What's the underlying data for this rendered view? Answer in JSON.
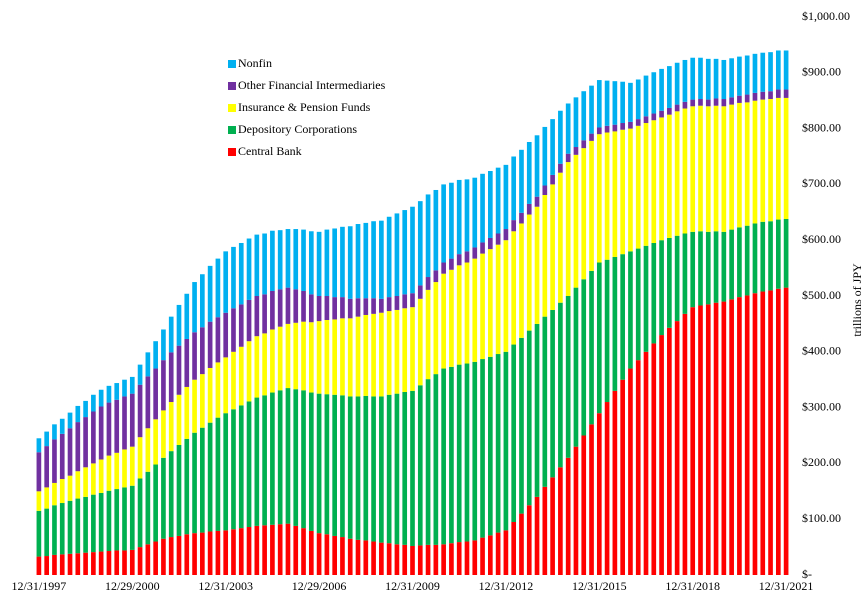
{
  "chart_data": {
    "type": "stacked_bar",
    "y_label": "trillions of JPY",
    "categories": [
      "12/31/1997",
      null,
      null,
      null,
      null,
      null,
      null,
      null,
      null,
      null,
      null,
      null,
      "12/29/2000",
      null,
      null,
      null,
      null,
      null,
      null,
      null,
      null,
      null,
      null,
      null,
      "12/31/2003",
      null,
      null,
      null,
      null,
      null,
      null,
      null,
      null,
      null,
      null,
      null,
      "12/29/2006",
      null,
      null,
      null,
      null,
      null,
      null,
      null,
      null,
      null,
      null,
      null,
      "12/31/2009",
      null,
      null,
      null,
      null,
      null,
      null,
      null,
      null,
      null,
      null,
      null,
      "12/31/2012",
      null,
      null,
      null,
      null,
      null,
      null,
      null,
      null,
      null,
      null,
      null,
      "12/31/2015",
      null,
      null,
      null,
      null,
      null,
      null,
      null,
      null,
      null,
      null,
      null,
      "12/31/2018",
      null,
      null,
      null,
      null,
      null,
      null,
      null,
      null,
      null,
      null,
      null,
      "12/31/2021"
    ],
    "series": [
      {
        "name": "Central Bank",
        "color": "#ff0000",
        "values": [
          33,
          34,
          36,
          37,
          38,
          39,
          40,
          41,
          42,
          43,
          44,
          44,
          45,
          50,
          55,
          60,
          65,
          68,
          70,
          73,
          75,
          76,
          78,
          79,
          80,
          82,
          84,
          86,
          88,
          89,
          90,
          91,
          92,
          88,
          84,
          79,
          75,
          73,
          70,
          68,
          65,
          63,
          62,
          60,
          58,
          57,
          55,
          54,
          52,
          53,
          54,
          54,
          55,
          57,
          59,
          60,
          62,
          67,
          71,
          76,
          80,
          95,
          110,
          125,
          140,
          158,
          175,
          193,
          210,
          230,
          250,
          270,
          290,
          310,
          330,
          350,
          370,
          385,
          400,
          415,
          430,
          443,
          455,
          468,
          480,
          483,
          485,
          488,
          490,
          494,
          498,
          501,
          505,
          508,
          510,
          513,
          515
        ]
      },
      {
        "name": "Depository Corporations",
        "color": "#00b050",
        "values": [
          82,
          85,
          89,
          92,
          95,
          98,
          100,
          103,
          105,
          108,
          110,
          113,
          115,
          123,
          130,
          138,
          145,
          154,
          163,
          171,
          180,
          188,
          195,
          203,
          210,
          215,
          220,
          225,
          230,
          233,
          237,
          240,
          243,
          245,
          247,
          248,
          250,
          251,
          253,
          254,
          255,
          257,
          259,
          260,
          262,
          266,
          270,
          274,
          278,
          287,
          297,
          306,
          315,
          316,
          318,
          319,
          320,
          320,
          320,
          320,
          320,
          318,
          315,
          313,
          310,
          305,
          300,
          295,
          290,
          285,
          280,
          275,
          270,
          255,
          240,
          225,
          210,
          200,
          190,
          180,
          170,
          161,
          153,
          144,
          135,
          133,
          130,
          128,
          125,
          125,
          125,
          125,
          125,
          125,
          124,
          124,
          123
        ]
      },
      {
        "name": "Insurance & Pension Funds",
        "color": "#ffff00",
        "values": [
          35,
          38,
          40,
          43,
          45,
          49,
          53,
          56,
          60,
          63,
          65,
          68,
          70,
          74,
          78,
          81,
          85,
          88,
          90,
          93,
          95,
          96,
          98,
          99,
          100,
          103,
          105,
          108,
          110,
          111,
          113,
          114,
          115,
          119,
          123,
          126,
          130,
          133,
          135,
          138,
          140,
          143,
          145,
          148,
          150,
          150,
          150,
          150,
          150,
          155,
          160,
          165,
          170,
          174,
          178,
          181,
          185,
          189,
          193,
          196,
          200,
          203,
          205,
          208,
          210,
          218,
          225,
          233,
          240,
          238,
          235,
          233,
          230,
          228,
          225,
          223,
          220,
          220,
          220,
          220,
          220,
          221,
          223,
          224,
          225,
          225,
          225,
          225,
          225,
          224,
          223,
          221,
          220,
          219,
          219,
          218,
          217
        ]
      },
      {
        "name": "Other Financial Intermediaries",
        "color": "#7030a0",
        "values": [
          70,
          74,
          78,
          81,
          85,
          88,
          90,
          93,
          95,
          95,
          95,
          95,
          95,
          94,
          93,
          91,
          90,
          89,
          88,
          86,
          85,
          84,
          83,
          81,
          80,
          78,
          76,
          74,
          72,
          70,
          69,
          67,
          65,
          60,
          55,
          50,
          45,
          43,
          40,
          38,
          35,
          33,
          30,
          28,
          25,
          25,
          25,
          25,
          25,
          24,
          23,
          21,
          20,
          20,
          20,
          20,
          20,
          20,
          20,
          20,
          20,
          20,
          19,
          19,
          18,
          17,
          17,
          16,
          15,
          14,
          14,
          13,
          12,
          12,
          12,
          12,
          12,
          12,
          12,
          12,
          12,
          12,
          12,
          12,
          12,
          12,
          12,
          13,
          13,
          13,
          13,
          14,
          14,
          14,
          14,
          15,
          15
        ]
      },
      {
        "name": "Nonfin",
        "color": "#00b0f0",
        "values": [
          25,
          26,
          27,
          27,
          28,
          29,
          29,
          30,
          30,
          30,
          30,
          30,
          30,
          36,
          43,
          49,
          55,
          64,
          73,
          81,
          90,
          95,
          100,
          105,
          110,
          110,
          110,
          110,
          110,
          109,
          108,
          106,
          105,
          108,
          110,
          113,
          115,
          119,
          123,
          126,
          130,
          133,
          135,
          138,
          140,
          144,
          148,
          151,
          155,
          151,
          148,
          144,
          140,
          136,
          133,
          129,
          125,
          123,
          120,
          118,
          115,
          114,
          113,
          111,
          110,
          105,
          100,
          95,
          90,
          89,
          88,
          86,
          85,
          81,
          78,
          74,
          70,
          71,
          73,
          74,
          75,
          75,
          75,
          75,
          75,
          74,
          73,
          71,
          70,
          70,
          70,
          70,
          70,
          70,
          70,
          70,
          70
        ]
      }
    ],
    "ylim": [
      0,
      1000
    ],
    "yticks": [
      {
        "value": 0,
        "label": "$-"
      },
      {
        "value": 100,
        "label": "$100.00"
      },
      {
        "value": 200,
        "label": "$200.00"
      },
      {
        "value": 300,
        "label": "$300.00"
      },
      {
        "value": 400,
        "label": "$400.00"
      },
      {
        "value": 500,
        "label": "$500.00"
      },
      {
        "value": 600,
        "label": "$600.00"
      },
      {
        "value": 700,
        "label": "$700.00"
      },
      {
        "value": 800,
        "label": "$800.00"
      },
      {
        "value": 900,
        "label": "$900.00"
      },
      {
        "value": 1000,
        "label": "$1,000.00"
      }
    ]
  }
}
